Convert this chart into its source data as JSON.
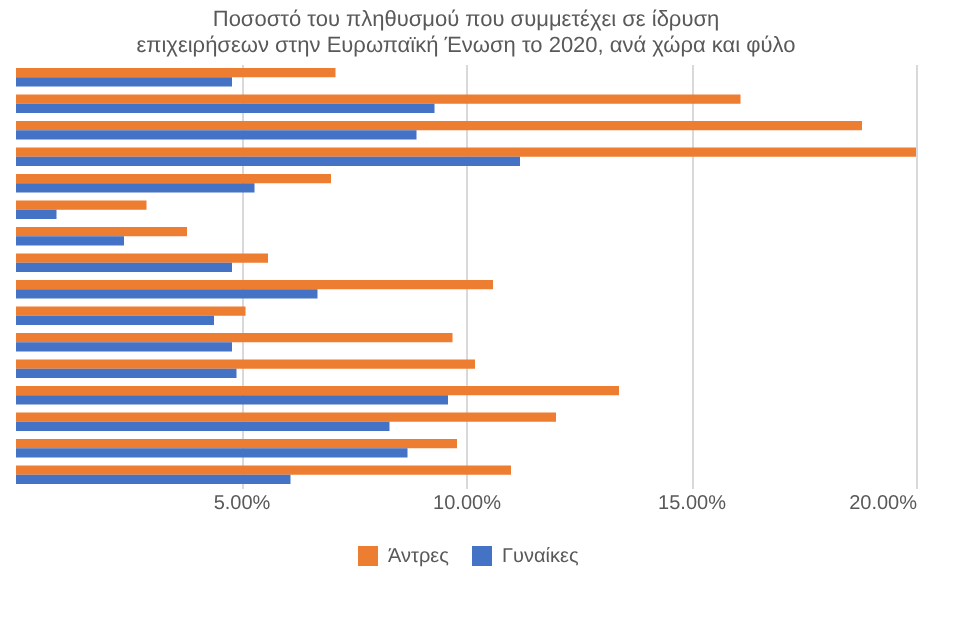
{
  "chart_data": {
    "type": "bar",
    "orientation": "horizontal",
    "title": "Ποσοστό του πληθυσμού που συμμετέχει σε ίδρυση επιχειρήσεων στην Ευρωπαϊκή Ένωση το 2020, ανά χώρα και φύλο",
    "categories": [
      null,
      null,
      null,
      null,
      null,
      null,
      null,
      null,
      null,
      null,
      null,
      null,
      null,
      null,
      null,
      null
    ],
    "series": [
      {
        "name": "Άντρες",
        "color": "#ed7d31",
        "values": [
          7.1,
          16.1,
          18.8,
          20.0,
          7.0,
          2.9,
          3.8,
          5.6,
          10.6,
          5.1,
          9.7,
          10.2,
          13.4,
          12.0,
          9.8,
          11.0
        ]
      },
      {
        "name": "Γυναίκες",
        "color": "#4472c4",
        "values": [
          4.8,
          9.3,
          8.9,
          11.2,
          5.3,
          0.9,
          2.4,
          4.8,
          6.7,
          4.4,
          4.8,
          4.9,
          9.6,
          8.3,
          8.7,
          6.1
        ]
      }
    ],
    "xlim": [
      0,
      20
    ],
    "xticks": [
      {
        "value": 5,
        "label": "5.00%"
      },
      {
        "value": 10,
        "label": "10.00%"
      },
      {
        "value": 15,
        "label": "15.00%"
      },
      {
        "value": 20,
        "label": "20.00%"
      }
    ],
    "grid": "x",
    "legend": "bottom",
    "tick_labels": "x"
  }
}
